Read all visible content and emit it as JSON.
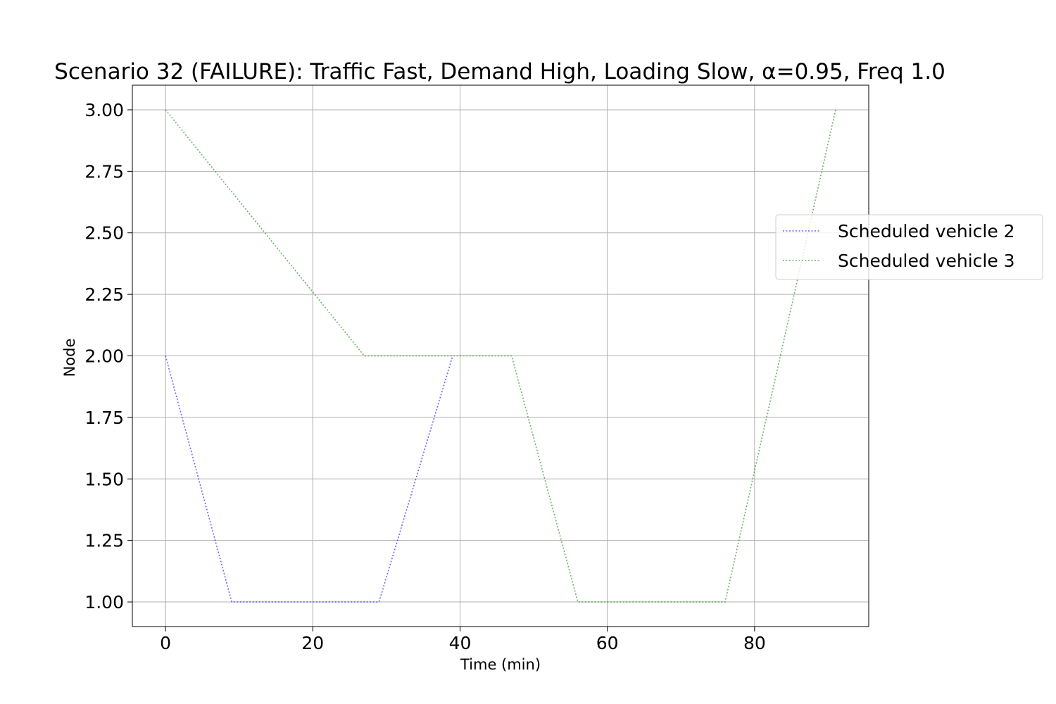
{
  "chart_data": {
    "type": "line",
    "title": "Scenario 32 (FAILURE): Traffic Fast, Demand High, Loading Slow, α=0.95, Freq 1.0",
    "xlabel": "Time (min)",
    "ylabel": "Node",
    "xlim": [
      -4.5,
      95.5
    ],
    "ylim": [
      0.9,
      3.1
    ],
    "xticks": [
      0,
      20,
      40,
      60,
      80
    ],
    "xtick_labels": [
      "0",
      "20",
      "40",
      "60",
      "80"
    ],
    "yticks": [
      1.0,
      1.25,
      1.5,
      1.75,
      2.0,
      2.25,
      2.5,
      2.75,
      3.0
    ],
    "ytick_labels": [
      "1.00",
      "1.25",
      "1.50",
      "1.75",
      "2.00",
      "2.25",
      "2.50",
      "2.75",
      "3.00"
    ],
    "grid": true,
    "legend_position": "right, outside plot",
    "series": [
      {
        "name": "Scheduled vehicle 2",
        "color": "#0000ff",
        "linestyle": "dotted",
        "x": [
          0,
          9,
          29,
          39
        ],
        "y": [
          2,
          1,
          1,
          2
        ]
      },
      {
        "name": "Scheduled vehicle 3",
        "color": "#008000",
        "linestyle": "dotted",
        "x": [
          0,
          27,
          47,
          56,
          76,
          91
        ],
        "y": [
          3,
          2,
          2,
          1,
          1,
          3
        ]
      }
    ]
  }
}
